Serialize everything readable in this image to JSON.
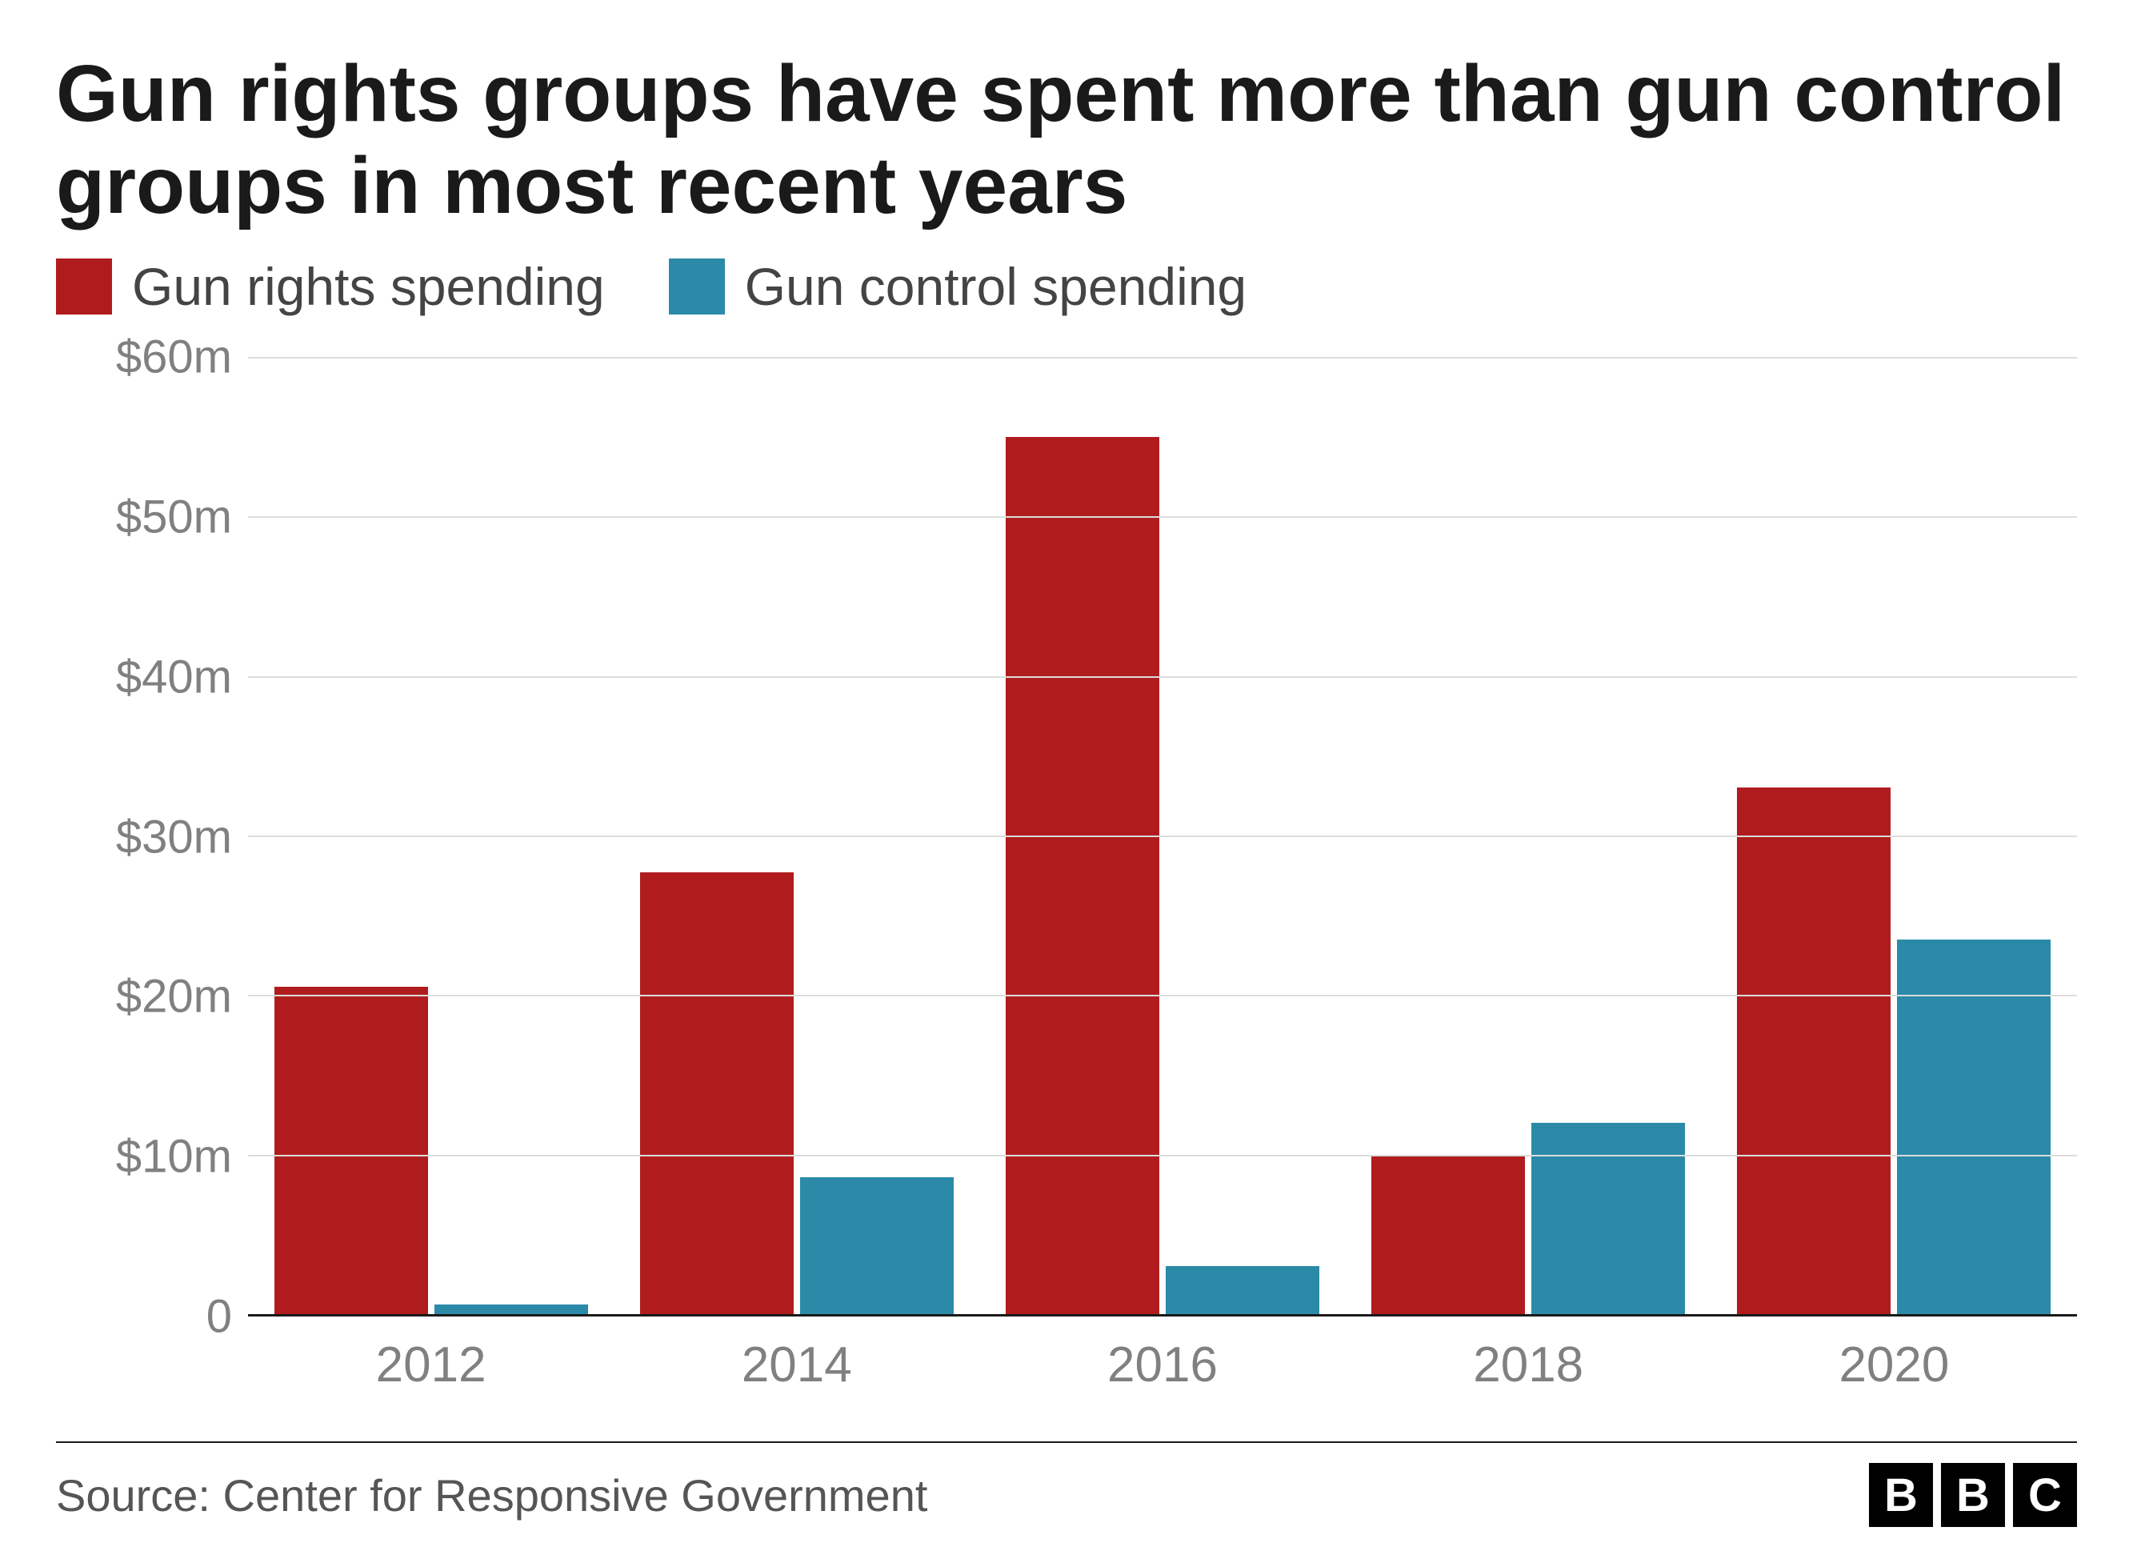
{
  "title": "Gun rights groups have spent more than gun control groups in most recent years",
  "legend": {
    "series": [
      {
        "label": "Gun rights spending",
        "color": "#b01c1e"
      },
      {
        "label": "Gun control spending",
        "color": "#2a8aa8"
      }
    ]
  },
  "chart": {
    "type": "bar",
    "background_color": "#ffffff",
    "grid_color": "#dcdcdc",
    "axis_label_color": "#808080",
    "axis_fontsize": 58,
    "ymin": 0,
    "ymax": 60,
    "yticks": [
      {
        "value": 0,
        "label": "0"
      },
      {
        "value": 10,
        "label": "$10m"
      },
      {
        "value": 20,
        "label": "$20m"
      },
      {
        "value": 30,
        "label": "$30m"
      },
      {
        "value": 40,
        "label": "$40m"
      },
      {
        "value": 50,
        "label": "$50m"
      },
      {
        "value": 60,
        "label": "$60m"
      }
    ],
    "categories": [
      "2012",
      "2014",
      "2016",
      "2018",
      "2020"
    ],
    "series": [
      {
        "name": "Gun rights spending",
        "color": "#b01c1e",
        "values": [
          20.5,
          27.7,
          55,
          10,
          33
        ]
      },
      {
        "name": "Gun control spending",
        "color": "#2a8aa8",
        "values": [
          0.6,
          8.6,
          3,
          12,
          23.5
        ]
      }
    ],
    "bar_group_gap": 8,
    "bar_width_pct": 42
  },
  "footer": {
    "source": "Source: Center for Responsive Government",
    "logo_letters": [
      "B",
      "B",
      "C"
    ]
  }
}
